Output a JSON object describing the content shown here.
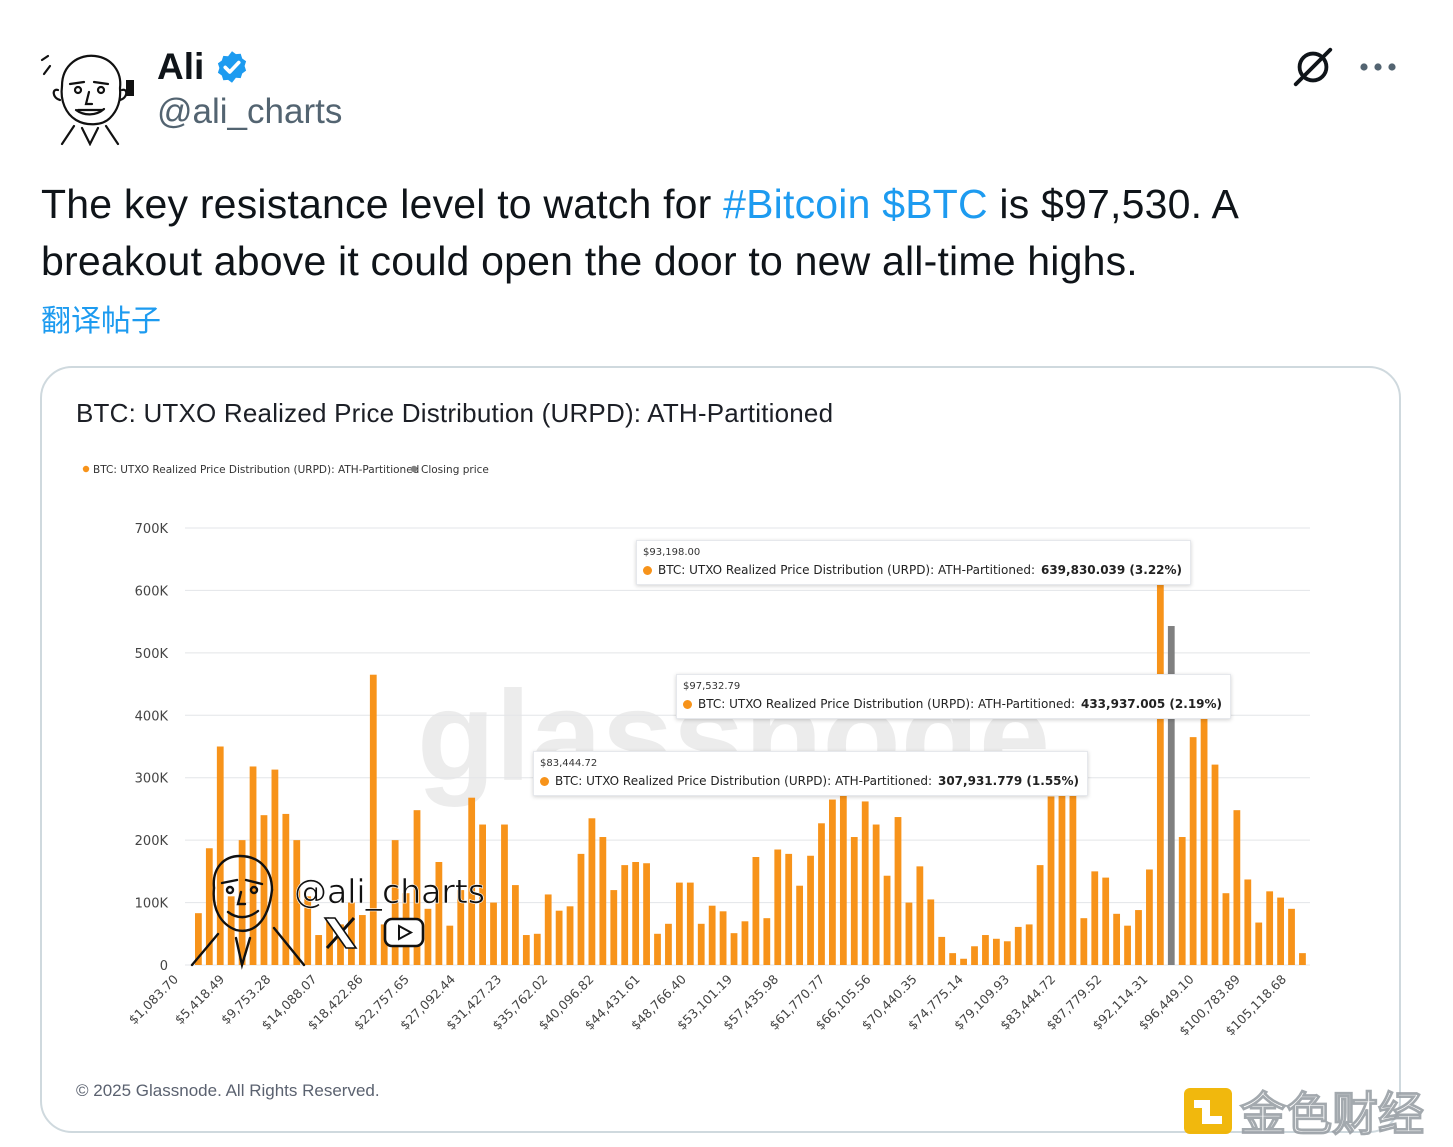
{
  "author": {
    "display_name": "Ali",
    "handle": "@ali_charts",
    "verified": true
  },
  "icons": {
    "verified": "verified-badge-icon",
    "grok": "grok-icon",
    "more": "more-options-icon"
  },
  "tweet": {
    "text_pre": "The key resistance level to watch for ",
    "hashtag": "#Bitcoin",
    "cashtag": "$BTC",
    "text_post": " is $97,530. A breakout above it could open the door to new all-time highs.",
    "translate_label": "翻译帖子"
  },
  "media": {
    "title": "BTC: UTXO Realized Price Distribution (URPD): ATH-Partitioned",
    "copyright": "© 2025 Glassnode. All Rights Reserved.",
    "chart_watermark": "glassnode",
    "overlay_handle": "@ali_charts"
  },
  "tooltips": [
    {
      "price": "$93,198.00",
      "series": "BTC: UTXO Realized Price Distribution (URPD): ATH-Partitioned:",
      "value": "639,830.039 (3.22%)"
    },
    {
      "price": "$97,532.79",
      "series": "BTC: UTXO Realized Price Distribution (URPD): ATH-Partitioned:",
      "value": "433,937.005 (2.19%)"
    },
    {
      "price": "$83,444.72",
      "series": "BTC: UTXO Realized Price Distribution (URPD): ATH-Partitioned:",
      "value": "307,931.779 (1.55%)"
    }
  ],
  "colors": {
    "bar": "#f7931a",
    "closing": "#808080",
    "link": "#1d9bf0"
  },
  "site_watermark": "金色财经",
  "chart_data": {
    "type": "bar",
    "title": "BTC: UTXO Realized Price Distribution (URPD): ATH-Partitioned",
    "legend": [
      {
        "name": "BTC: UTXO Realized Price Distribution (URPD): ATH-Partitioned",
        "color": "#f7931a"
      },
      {
        "name": "Closing price",
        "color": "#808080"
      }
    ],
    "legend_position": "top-left",
    "ylim": [
      0,
      700000
    ],
    "yticks": [
      0,
      100000,
      200000,
      300000,
      400000,
      500000,
      600000,
      700000
    ],
    "ytick_labels": [
      "0",
      "100K",
      "200K",
      "300K",
      "400K",
      "500K",
      "600K",
      "700K"
    ],
    "xtick_labels": [
      "$1,083.70",
      "$5,418.49",
      "$9,753.28",
      "$14,088.07",
      "$18,422.86",
      "$22,757.65",
      "$27,092.44",
      "$31,427.23",
      "$35,762.02",
      "$40,096.82",
      "$44,431.61",
      "$48,766.40",
      "$53,101.19",
      "$57,435.98",
      "$61,770.77",
      "$66,105.56",
      "$70,440.35",
      "$74,775.14",
      "$79,109.93",
      "$83,444.72",
      "$87,779.52",
      "$92,114.31",
      "$96,449.10",
      "$100,783.89",
      "$105,118.68"
    ],
    "grid": true,
    "bar_values": [
      83000,
      187000,
      350000,
      110000,
      200000,
      318000,
      240000,
      313000,
      242000,
      200000,
      110000,
      48000,
      70000,
      65000,
      100000,
      80000,
      465000,
      65000,
      200000,
      115000,
      248000,
      90000,
      165000,
      63000,
      120000,
      268000,
      225000,
      100000,
      225000,
      128000,
      48000,
      50000,
      113000,
      87000,
      94000,
      178000,
      235000,
      205000,
      120000,
      160000,
      165000,
      163000,
      50000,
      66000,
      132000,
      132000,
      66000,
      95000,
      86000,
      51000,
      70000,
      173000,
      75000,
      185000,
      178000,
      127000,
      175000,
      227000,
      265000,
      280000,
      205000,
      262000,
      225000,
      143000,
      237000,
      100000,
      158000,
      105000,
      45000,
      19000,
      10000,
      30000,
      48000,
      42000,
      38000,
      61000,
      65000,
      160000,
      270000,
      285000,
      290000,
      75000,
      150000,
      140000,
      82000,
      63000,
      88000,
      153000,
      639830,
      205000,
      365000,
      433937,
      321000,
      115000,
      248000,
      137000,
      68000,
      118000,
      108000,
      90000,
      19000
    ],
    "closing_price_bar": {
      "after_bar_index": 88,
      "value": 543000
    }
  }
}
